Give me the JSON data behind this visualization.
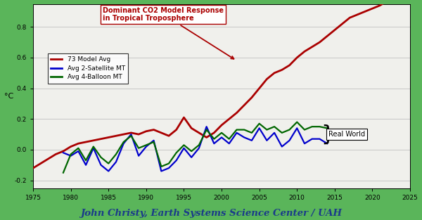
{
  "title": "John Christy, Earth Systems Science Center / UAH",
  "ylabel": "°C",
  "xlim": [
    1975,
    2025
  ],
  "ylim": [
    -0.25,
    0.95
  ],
  "xticks": [
    1975,
    1980,
    1985,
    1990,
    1995,
    2000,
    2005,
    2010,
    2015,
    2020,
    2025
  ],
  "yticks": [
    -0.2,
    0.0,
    0.2,
    0.4,
    0.6,
    0.8
  ],
  "outer_bg_color": "#5ab55a",
  "plot_bg_color": "#f0f0ec",
  "annotation_text": "Dominant CO2 Model Response\nin Tropical Troposphere",
  "real_world_text": "Real World",
  "model_color": "#aa0000",
  "satellite_color": "#0000cc",
  "balloon_color": "#006600",
  "model_years": [
    1975,
    1976,
    1977,
    1978,
    1979,
    1980,
    1981,
    1982,
    1983,
    1984,
    1985,
    1986,
    1987,
    1988,
    1989,
    1990,
    1991,
    1992,
    1993,
    1994,
    1995,
    1996,
    1997,
    1998,
    1999,
    2000,
    2001,
    2002,
    2003,
    2004,
    2005,
    2006,
    2007,
    2008,
    2009,
    2010,
    2011,
    2012,
    2013,
    2014,
    2015,
    2016,
    2017,
    2018,
    2019,
    2020,
    2021,
    2022,
    2023,
    2024,
    2025
  ],
  "model_vals": [
    -0.12,
    -0.09,
    -0.06,
    -0.03,
    -0.01,
    0.02,
    0.04,
    0.05,
    0.06,
    0.07,
    0.08,
    0.09,
    0.1,
    0.11,
    0.1,
    0.12,
    0.13,
    0.11,
    0.09,
    0.13,
    0.21,
    0.14,
    0.11,
    0.08,
    0.11,
    0.16,
    0.2,
    0.24,
    0.29,
    0.34,
    0.4,
    0.46,
    0.5,
    0.52,
    0.55,
    0.6,
    0.64,
    0.67,
    0.7,
    0.74,
    0.78,
    0.82,
    0.86,
    0.88,
    0.9,
    0.92,
    0.94,
    0.97,
    1.0,
    1.03,
    1.06
  ],
  "satellite_years": [
    1979,
    1980,
    1981,
    1982,
    1983,
    1984,
    1985,
    1986,
    1987,
    1988,
    1989,
    1990,
    1991,
    1992,
    1993,
    1994,
    1995,
    1996,
    1997,
    1998,
    1999,
    2000,
    2001,
    2002,
    2003,
    2004,
    2005,
    2006,
    2007,
    2008,
    2009,
    2010,
    2011,
    2012,
    2013,
    2014
  ],
  "satellite_vals": [
    -0.02,
    -0.04,
    -0.01,
    -0.1,
    0.01,
    -0.1,
    -0.14,
    -0.08,
    0.04,
    0.1,
    -0.04,
    0.02,
    0.06,
    -0.14,
    -0.12,
    -0.07,
    0.01,
    -0.05,
    0.01,
    0.15,
    0.04,
    0.08,
    0.04,
    0.11,
    0.08,
    0.06,
    0.14,
    0.06,
    0.11,
    0.02,
    0.06,
    0.14,
    0.04,
    0.07,
    0.07,
    0.04
  ],
  "balloon_years": [
    1979,
    1980,
    1981,
    1982,
    1983,
    1984,
    1985,
    1986,
    1987,
    1988,
    1989,
    1990,
    1991,
    1992,
    1993,
    1994,
    1995,
    1996,
    1997,
    1998,
    1999,
    2000,
    2001,
    2002,
    2003,
    2004,
    2005,
    2006,
    2007,
    2008,
    2009,
    2010,
    2011,
    2012,
    2013,
    2014
  ],
  "balloon_vals": [
    -0.15,
    -0.03,
    0.01,
    -0.07,
    0.02,
    -0.05,
    -0.09,
    -0.03,
    0.05,
    0.09,
    0.01,
    0.03,
    0.05,
    -0.11,
    -0.09,
    -0.02,
    0.03,
    -0.01,
    0.03,
    0.13,
    0.07,
    0.11,
    0.07,
    0.13,
    0.13,
    0.11,
    0.17,
    0.13,
    0.15,
    0.11,
    0.13,
    0.18,
    0.13,
    0.15,
    0.15,
    0.14
  ]
}
